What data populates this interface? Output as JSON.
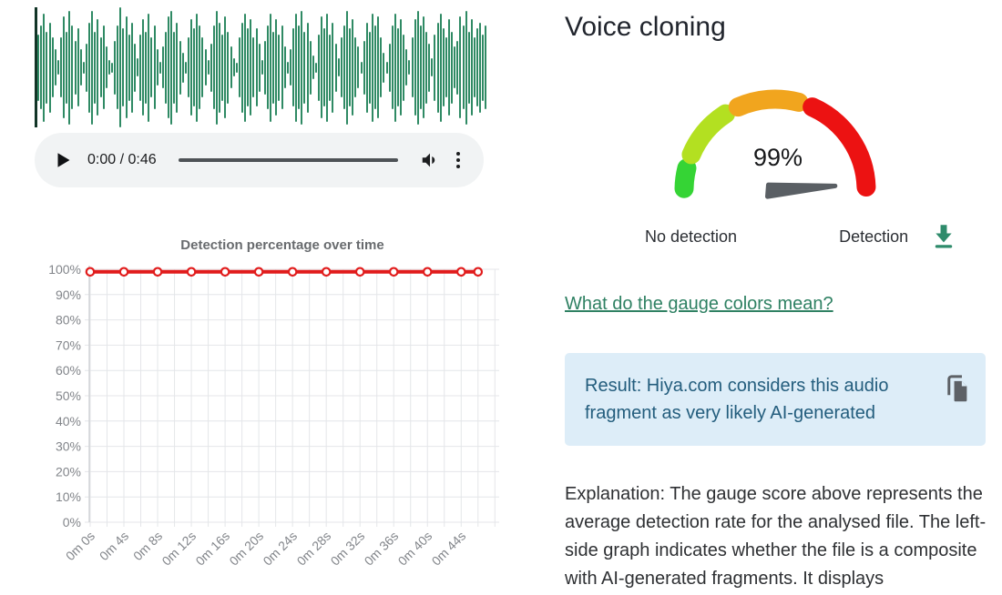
{
  "audio_player": {
    "time_display": "0:00 / 0:46",
    "current_time": "0:00",
    "duration": "0:46"
  },
  "waveform": {
    "color": "#2f8a64",
    "cursor_color": "#123527",
    "amplitudes": [
      0.95,
      0.55,
      0.7,
      0.9,
      0.6,
      0.75,
      0.5,
      0.3,
      0.12,
      0.5,
      0.85,
      0.6,
      0.95,
      0.7,
      0.45,
      0.65,
      0.3,
      0.1,
      0.4,
      0.75,
      0.95,
      0.6,
      0.8,
      0.5,
      0.7,
      0.35,
      0.12,
      0.08,
      0.45,
      0.7,
      1.0,
      0.65,
      0.85,
      0.55,
      0.75,
      0.4,
      0.15,
      0.55,
      0.8,
      0.6,
      0.9,
      0.5,
      0.7,
      0.3,
      0.1,
      0.35,
      0.6,
      0.85,
      0.95,
      0.6,
      0.75,
      0.45,
      0.25,
      0.1,
      0.5,
      0.8,
      0.65,
      0.9,
      0.7,
      0.5,
      0.3,
      0.12,
      0.4,
      0.7,
      0.95,
      0.75,
      0.55,
      0.85,
      0.6,
      0.35,
      0.15,
      0.08,
      0.5,
      0.75,
      0.9,
      0.65,
      0.8,
      0.5,
      0.65,
      0.4,
      0.12,
      0.45,
      0.7,
      0.9,
      0.6,
      0.8,
      0.55,
      0.7,
      0.35,
      0.1,
      0.3,
      0.65,
      0.9,
      0.7,
      0.95,
      0.6,
      0.75,
      0.45,
      0.2,
      0.08,
      0.55,
      0.85,
      0.65,
      0.9,
      0.55,
      0.75,
      0.4,
      0.15,
      0.5,
      0.7,
      0.95,
      0.65,
      0.8,
      0.5,
      0.35,
      0.1,
      0.45,
      0.75,
      0.6,
      0.9,
      0.7,
      0.85,
      0.5,
      0.25,
      0.1,
      0.4,
      0.7,
      0.9,
      0.65,
      0.8,
      0.55,
      0.3,
      0.12,
      0.5,
      0.8,
      0.95,
      0.7,
      0.85,
      0.6,
      0.4,
      0.15,
      0.55,
      0.75,
      0.9,
      0.65,
      0.5,
      0.8,
      0.6,
      0.35,
      0.45,
      0.85,
      0.7,
      0.95,
      0.6,
      0.8,
      0.5,
      0.65,
      0.75,
      0.55,
      0.7
    ]
  },
  "chart_data": {
    "type": "line",
    "title": "Detection percentage over time",
    "x_labels": [
      "0m 0s",
      "0m 4s",
      "0m 8s",
      "0m 12s",
      "0m 16s",
      "0m 20s",
      "0m 24s",
      "0m 28s",
      "0m 32s",
      "0m 36s",
      "0m 40s",
      "0m 44s"
    ],
    "x_seconds": [
      0,
      4,
      8,
      12,
      16,
      20,
      24,
      28,
      32,
      36,
      40,
      44
    ],
    "values_pct": [
      99,
      99,
      99,
      99,
      99,
      99,
      99,
      99,
      99,
      99,
      99,
      99
    ],
    "end_point": {
      "x_seconds": 46,
      "value_pct": 99
    },
    "y_tick_labels": [
      "0%",
      "10%",
      "20%",
      "30%",
      "40%",
      "50%",
      "60%",
      "70%",
      "80%",
      "90%",
      "100%"
    ],
    "ylim": [
      0,
      100
    ],
    "y_tick_step": 10,
    "grid": true,
    "minor_x_grid_step_s": 2,
    "line_color": "#e11c1c",
    "marker": "open-circle",
    "grid_color": "#e4e6e9",
    "axis_color": "#cfd2d5",
    "tick_label_color": "#82858a",
    "title_color": "#686b6e"
  },
  "panel": {
    "title": "Voice cloning",
    "gauge": {
      "value_label": "99%",
      "left_label": "No detection",
      "right_label": "Detection",
      "segment_colors": [
        "#35d435",
        "#b3e021",
        "#f1a51e",
        "#ec1212"
      ],
      "needle_color": "#5a5f64",
      "download_icon_color": "#2e8b6b"
    },
    "link_label": "What do the gauge colors mean?",
    "result": {
      "text": "Result: Hiya.com considers this audio fragment as very likely AI-generated",
      "bg_color": "#ddedf8",
      "text_color": "#235d7d",
      "copy_icon_color": "#5d6166"
    },
    "explanation": "Explanation: The gauge score above represents the average detection rate for the analysed file. The left-side graph indicates whether the file is a composite with AI-generated fragments. It displays"
  }
}
